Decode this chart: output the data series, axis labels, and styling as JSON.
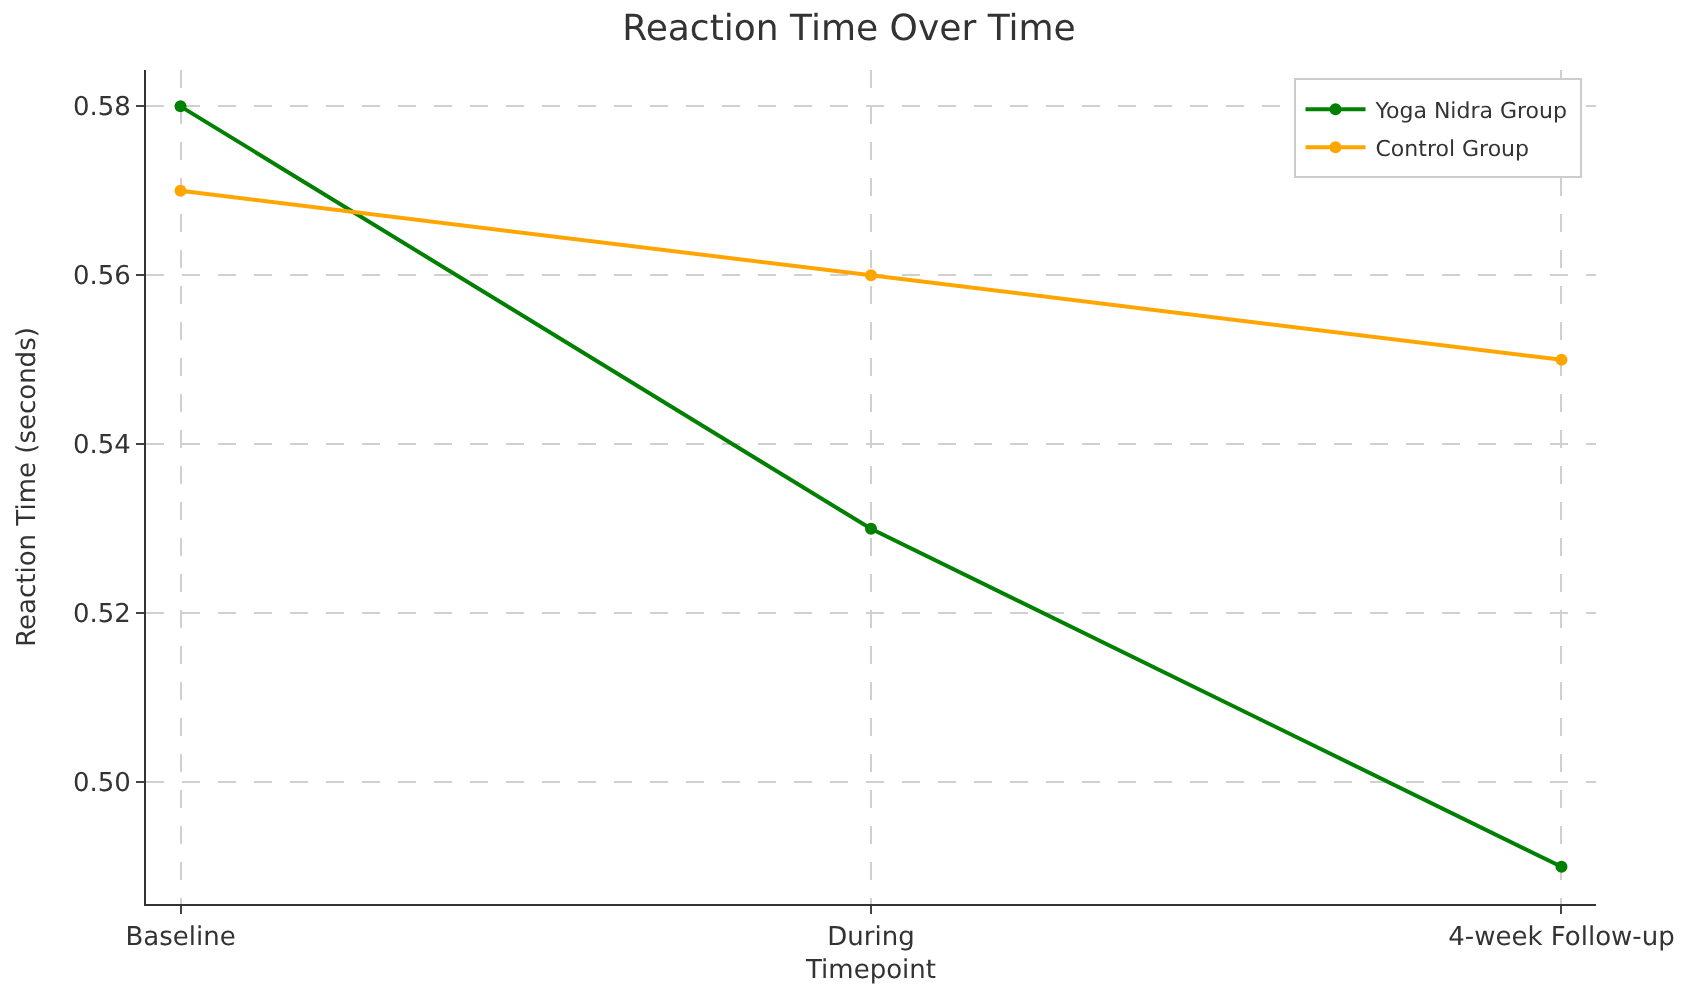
{
  "chart_data": {
    "type": "line",
    "title": "Reaction Time Over Time",
    "xlabel": "Timepoint",
    "ylabel": "Reaction Time (seconds)",
    "categories": [
      "Baseline",
      "During",
      "4-week Follow-up"
    ],
    "series": [
      {
        "name": "Yoga Nidra Group",
        "color": "#008000",
        "values": [
          0.58,
          0.53,
          0.49
        ]
      },
      {
        "name": "Control Group",
        "color": "#ffa500",
        "values": [
          0.57,
          0.56,
          0.55
        ]
      }
    ],
    "ylim": [
      0.4856,
      0.5843
    ],
    "yticks": [
      {
        "value": 0.5,
        "label": "0.50"
      },
      {
        "value": 0.52,
        "label": "0.52"
      },
      {
        "value": 0.54,
        "label": "0.54"
      },
      {
        "value": 0.56,
        "label": "0.56"
      },
      {
        "value": 0.58,
        "label": "0.58"
      }
    ],
    "grid": true,
    "legend": "top right",
    "marker": "circle",
    "line_style": "solid"
  }
}
